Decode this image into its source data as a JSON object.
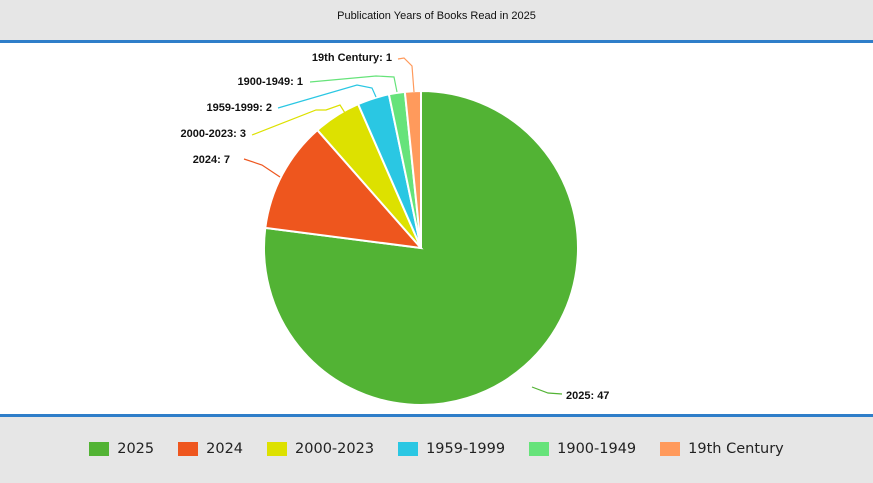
{
  "chart_data": {
    "type": "pie",
    "title": "Publication Years of Books Read in 2025",
    "slices": [
      {
        "label": "2025",
        "value": 47,
        "color": "#52b334"
      },
      {
        "label": "2024",
        "value": 7,
        "color": "#ee561e"
      },
      {
        "label": "2000-2023",
        "value": 3,
        "color": "#dde100"
      },
      {
        "label": "1959-1999",
        "value": 2,
        "color": "#2ac7e3"
      },
      {
        "label": "1900-1949",
        "value": 1,
        "color": "#66e37a"
      },
      {
        "label": "19th Century",
        "value": 1,
        "color": "#ff9a5c"
      }
    ],
    "data_labels": [
      "2025: 47",
      "2024: 7",
      "2000-2023: 3",
      "1959-1999: 2",
      "1900-1949: 1",
      "19th Century: 1"
    ],
    "legend_position": "bottom"
  }
}
